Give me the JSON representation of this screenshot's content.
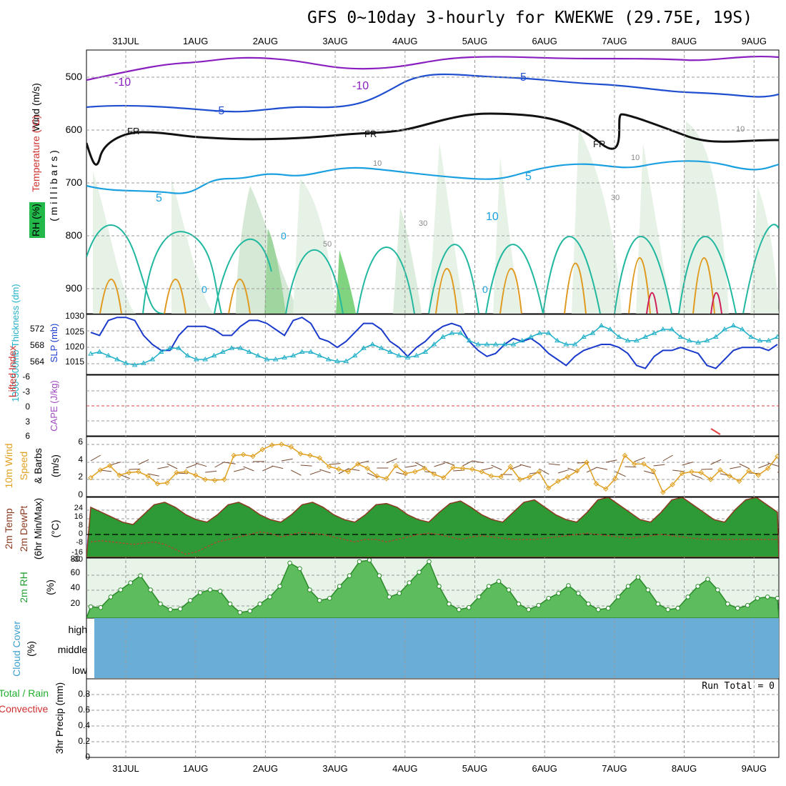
{
  "title": "GFS 0~10day 3-hourly for KWEKWE (29.75E, 19S)",
  "dates": [
    "31JUL",
    "1AUG",
    "2AUG",
    "3AUG",
    "4AUG",
    "5AUG",
    "6AUG",
    "7AUG",
    "8AUG",
    "9AUG"
  ],
  "colors": {
    "wind_temp_minus10": "#8a1fc0",
    "wind_temp_minus5": "#1f4fd0",
    "freezing": "#111111",
    "temp_5": "#1aa0e0",
    "temp_10": "#22b8a0",
    "thickness": "#22b0c8",
    "slp": "#1a3acc",
    "wind10m": "#e0a020",
    "barbs": "#7a4a30",
    "dewpt": "#a05030",
    "rh2m": "#22a030",
    "cloud": "#6aaed8",
    "cape_zero_line": "#e04040"
  },
  "panels": {
    "upper": {
      "axis_label_wind": "Wind (m/s)",
      "axis_label_temp": "Temperature (°C)",
      "axis_label_rh": "RH (%)",
      "axis_label_mb": "( m i l l i b a r s )",
      "pressure_ticks": [
        "500",
        "600",
        "700",
        "800",
        "900"
      ],
      "contour_labels": [
        "-10",
        "-10",
        "-5",
        "5",
        "FR",
        "FR",
        "FR",
        "5",
        "10",
        "5",
        "10",
        "30",
        "50",
        "10",
        "30",
        "10",
        "0",
        "0",
        "0",
        "10"
      ]
    },
    "thickness_slp": {
      "label_thickness": "1000-500mb Thickness (dm)",
      "label_slp": "SLP (mb)",
      "left_ticks": [
        "572",
        "568",
        "564"
      ],
      "right_ticks": [
        "1030",
        "1025",
        "1020",
        "1015"
      ]
    },
    "cape_li": {
      "label_li": "Lifted Index",
      "label_cape": "CAPE (J/kg)",
      "ticks": [
        "-6",
        "-3",
        "0",
        "3",
        "6"
      ]
    },
    "wind10m": {
      "label_1": "10m Wind",
      "label_2": "Speed",
      "label_3": "& Barbs",
      "label_unit": "(m/s)",
      "ticks": [
        "6",
        "4",
        "2",
        "0"
      ]
    },
    "temp2m": {
      "label_1": "2m Temp",
      "label_2": "2m DewPt",
      "label_3": "(6hr Min/Max)",
      "label_unit": "(°C)",
      "ticks": [
        "24",
        "16",
        "8",
        "0",
        "-8",
        "-16",
        "-30"
      ]
    },
    "rh2m": {
      "label_1": "2m RH",
      "label_unit": "(%)",
      "ticks": [
        "80",
        "60",
        "40",
        "20"
      ]
    },
    "cloud": {
      "label_1": "Cloud Cover",
      "label_unit": "(%)",
      "levels": [
        "high",
        "middle",
        "low"
      ]
    },
    "precip": {
      "label_total": "Total / Rain",
      "label_conv": "Convective",
      "label_axis": "3hr Precip (mm)",
      "ticks": [
        "0.8",
        "0.6",
        "0.4",
        "0.2",
        "0"
      ],
      "run_total": "Run Total = 0"
    }
  },
  "chart_data": [
    {
      "type": "line",
      "panel": "1000-500mb thickness & SLP",
      "x_unit": "3-hourly steps",
      "series": [
        {
          "name": "SLP (mb)",
          "values": [
            1024,
            1023,
            1028,
            1029,
            1029,
            1028,
            1023,
            1020,
            1018,
            1018,
            1023,
            1026,
            1026,
            1026,
            1025,
            1023,
            1023,
            1026,
            1028,
            1028,
            1027,
            1025,
            1023,
            1028,
            1029,
            1027,
            1022,
            1021,
            1019,
            1021,
            1024,
            1027,
            1027,
            1025,
            1021,
            1019,
            1016,
            1019,
            1021,
            1024,
            1026,
            1027,
            1026,
            1021,
            1018,
            1016,
            1017,
            1020,
            1022,
            1021,
            1022,
            1020,
            1017,
            1015,
            1013,
            1016,
            1018,
            1019,
            1020,
            1020,
            1019,
            1017,
            1013,
            1012,
            1016,
            1018,
            1018,
            1019,
            1018,
            1017,
            1013,
            1012,
            1015,
            1018,
            1019,
            1019,
            1019,
            1018,
            1020
          ]
        },
        {
          "name": "Thickness (dm)",
          "values": [
            565.5,
            566,
            565,
            564,
            563,
            562.5,
            563,
            564,
            566,
            567,
            567,
            565,
            564,
            564,
            565,
            566,
            567,
            567,
            566,
            565,
            564,
            564,
            564.5,
            565,
            566,
            566,
            565,
            564,
            563.5,
            563.5,
            565,
            567,
            568,
            567,
            566,
            565,
            564.5,
            565,
            566,
            568,
            570,
            571,
            571,
            569,
            568,
            568,
            568,
            568,
            568,
            569,
            570,
            571,
            571,
            569,
            568,
            568,
            570,
            571,
            573,
            572,
            570,
            569,
            569,
            570,
            571,
            572,
            572,
            570,
            569,
            568.5,
            569,
            570,
            572,
            573,
            572,
            570,
            569,
            569,
            570
          ]
        }
      ],
      "ylim_slp": [
        1010,
        1030
      ],
      "ylim_thickness": [
        560,
        576
      ]
    },
    {
      "type": "line",
      "panel": "10m wind speed",
      "series": [
        {
          "name": "Speed (m/s)",
          "values": [
            2.2,
            3.1,
            3.6,
            2.5,
            2.8,
            2.9,
            2.4,
            1.5,
            1.6,
            2.8,
            2.9,
            2.5,
            2.0,
            1.9,
            2.0,
            4.8,
            4.9,
            4.7,
            5.5,
            6.0,
            6.1,
            5.8,
            5.0,
            4.8,
            4.5,
            3.5,
            3.2,
            2.9,
            3.8,
            3.3,
            2.4,
            2.1,
            3.6,
            2.7,
            2.9,
            3.3,
            2.6,
            2.2,
            3.4,
            3.3,
            3.2,
            2.9,
            2.4,
            2.3,
            3.5,
            2.0,
            2.3,
            2.9,
            1.0,
            1.8,
            2.3,
            3.0,
            4.0,
            1.5,
            0.9,
            2.1,
            4.8,
            3.8,
            3.8,
            3.0,
            0.5,
            1.4,
            2.7,
            2.9,
            2.8,
            2.0,
            3.1,
            2.4,
            1.8,
            3.0,
            2.5,
            3.3,
            4.7
          ]
        }
      ],
      "ylim": [
        0,
        7
      ]
    },
    {
      "type": "area",
      "panel": "2m temperature & dewpoint",
      "series": [
        {
          "name": "2m Temp (°C)",
          "values": [
            22,
            18,
            14,
            10,
            8,
            16,
            24,
            26,
            22,
            16,
            12,
            10,
            16,
            24,
            26,
            22,
            16,
            12,
            10,
            16,
            24,
            26,
            22,
            16,
            12,
            10,
            16,
            24,
            25,
            22,
            16,
            12,
            10,
            18,
            25,
            27,
            22,
            16,
            12,
            10,
            18,
            26,
            28,
            22,
            16,
            12,
            10,
            18,
            28,
            30,
            24,
            18,
            12,
            10,
            18,
            28,
            30,
            24,
            18,
            12,
            10,
            20,
            28,
            30,
            24,
            18
          ]
        },
        {
          "name": "2m DewPt (°C)",
          "values": [
            -6,
            -5,
            -6,
            -7,
            -8,
            -7,
            -6,
            -8,
            -12,
            -16,
            -14,
            -10,
            -6,
            -4,
            -2,
            0,
            2,
            1,
            -2,
            0,
            2,
            1,
            0,
            -2,
            -4,
            -6,
            -4,
            -4,
            -6,
            -4,
            -2,
            0,
            1,
            0,
            -2,
            -4,
            -2,
            -1,
            -2,
            -3,
            -4,
            -4,
            -4,
            -3,
            -2,
            -1,
            0,
            1,
            0,
            -1,
            -2,
            -3,
            -2,
            -1,
            0,
            -1,
            -2,
            -3,
            -4,
            -4,
            -4,
            -4,
            -4,
            -4,
            -4,
            -4
          ]
        }
      ],
      "ylim": [
        -32,
        30
      ]
    },
    {
      "type": "area",
      "panel": "2m RH",
      "series": [
        {
          "name": "2m RH (%)",
          "values": [
            16,
            15,
            30,
            40,
            50,
            60,
            40,
            20,
            12,
            13,
            25,
            36,
            40,
            38,
            20,
            8,
            10,
            20,
            30,
            45,
            78,
            70,
            40,
            25,
            28,
            45,
            60,
            80,
            82,
            60,
            30,
            35,
            50,
            65,
            80,
            45,
            20,
            12,
            15,
            30,
            45,
            52,
            40,
            20,
            12,
            18,
            28,
            35,
            46,
            35,
            20,
            12,
            14,
            30,
            45,
            58,
            40,
            20,
            12,
            14,
            30,
            45,
            55,
            40,
            20,
            14,
            18,
            28,
            30,
            28
          ]
        }
      ],
      "ylim": [
        0,
        85
      ]
    },
    {
      "type": "bar",
      "panel": "3hr precip",
      "values": [],
      "ylim": [
        0,
        1
      ]
    }
  ]
}
